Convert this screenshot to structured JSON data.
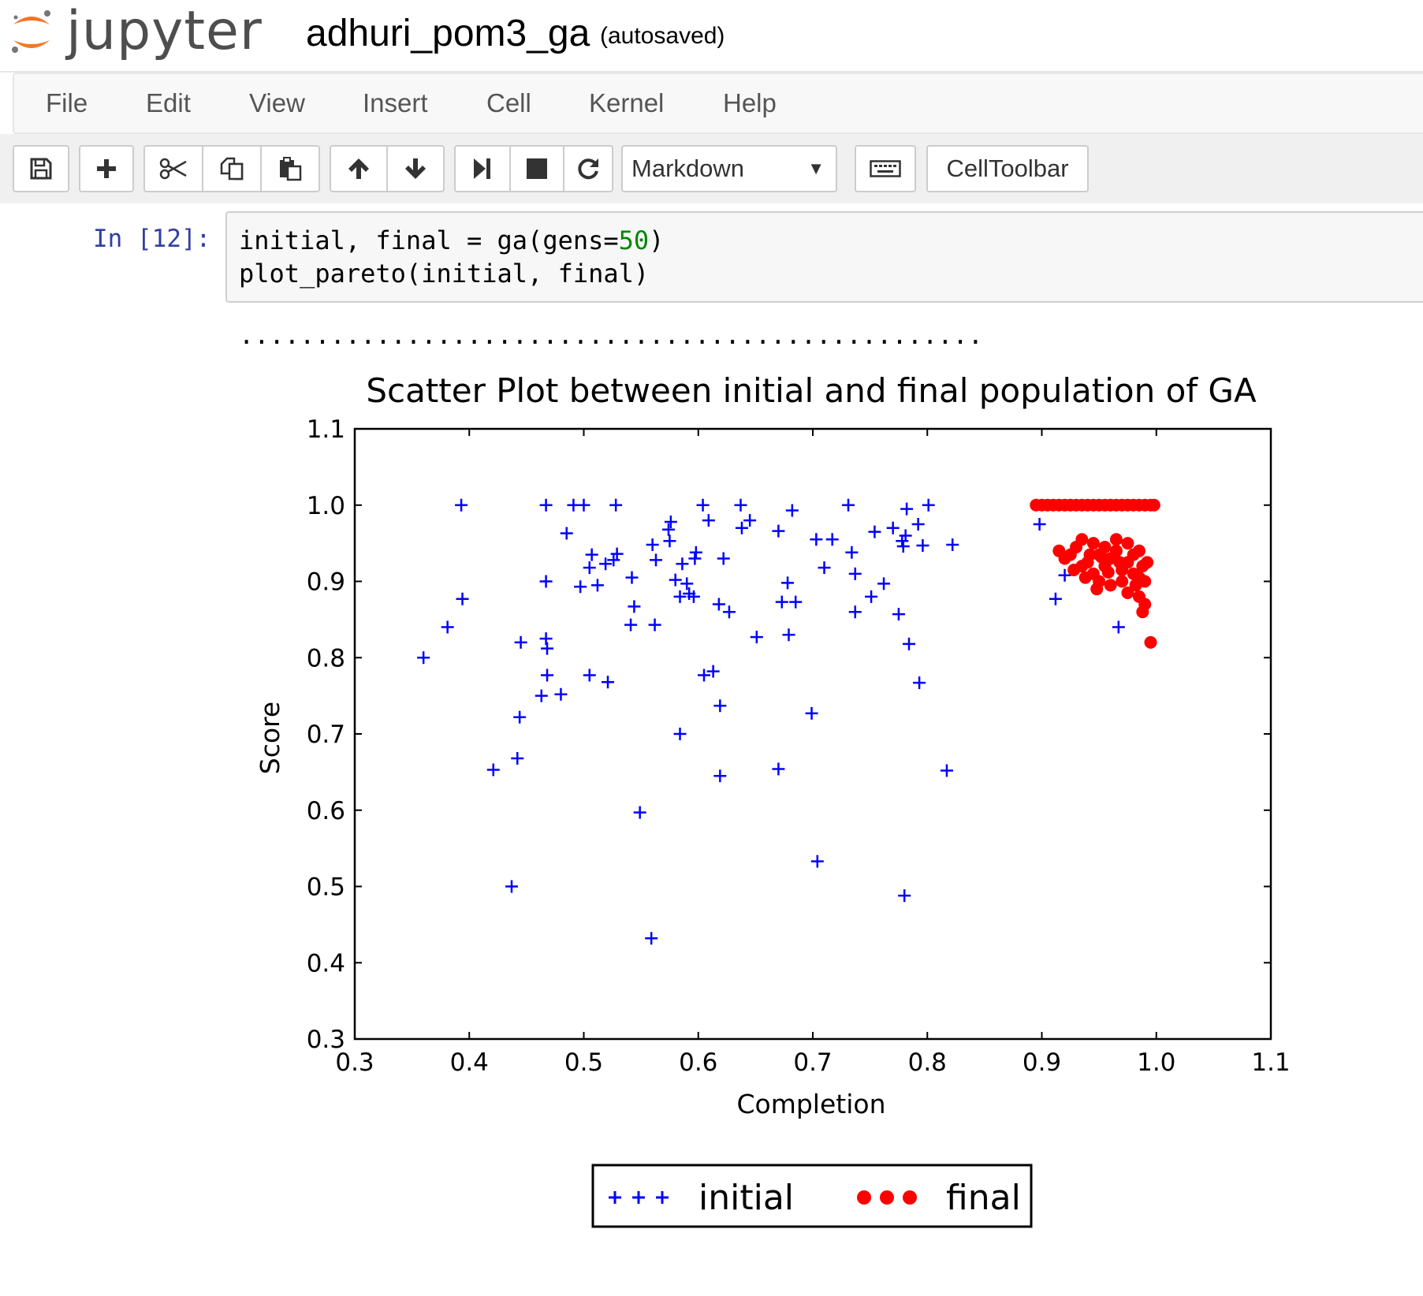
{
  "header": {
    "logo_text": "jupyter",
    "notebook_name": "adhuri_pom3_ga",
    "autosave_status": "(autosaved)",
    "logo_colors": {
      "ring": "#f37726",
      "wordmark": "#4e4e4e",
      "dots": "#767677"
    }
  },
  "menu": {
    "items": [
      "File",
      "Edit",
      "View",
      "Insert",
      "Cell",
      "Kernel",
      "Help"
    ]
  },
  "toolbar": {
    "buttons": [
      {
        "name": "save-button",
        "icon": "floppy-disk-icon"
      },
      {
        "name": "insert-cell-button",
        "icon": "plus-icon"
      },
      {
        "name": "cut-button",
        "icon": "scissors-icon"
      },
      {
        "name": "copy-button",
        "icon": "copy-icon"
      },
      {
        "name": "paste-button",
        "icon": "paste-icon"
      },
      {
        "name": "move-up-button",
        "icon": "arrow-up-icon"
      },
      {
        "name": "move-down-button",
        "icon": "arrow-down-icon"
      },
      {
        "name": "run-button",
        "icon": "step-forward-icon"
      },
      {
        "name": "interrupt-button",
        "icon": "stop-icon"
      },
      {
        "name": "restart-button",
        "icon": "refresh-icon"
      },
      {
        "name": "command-palette-button",
        "icon": "keyboard-icon"
      }
    ],
    "cell_type": "Markdown",
    "cell_toolbar_label": "CellToolbar"
  },
  "cell": {
    "prompt": "In [12]:",
    "code_line1_prefix": "initial, final = ga(gens=",
    "code_line1_number": "50",
    "code_line1_suffix": ")",
    "code_line2": "plot_pareto(initial, final)",
    "stream_output": "................................................."
  },
  "chart_data": {
    "type": "scatter",
    "title": "Scatter Plot between initial and final population of GA",
    "xlabel": "Completion",
    "ylabel": "Score",
    "xlim": [
      0.3,
      1.1
    ],
    "ylim": [
      0.3,
      1.1
    ],
    "xticks": [
      "0.3",
      "0.4",
      "0.5",
      "0.6",
      "0.7",
      "0.8",
      "0.9",
      "1.0",
      "1.1"
    ],
    "yticks": [
      "0.3",
      "0.4",
      "0.5",
      "0.6",
      "0.7",
      "0.8",
      "0.9",
      "1.0",
      "1.1"
    ],
    "grid": false,
    "legend_position": "below",
    "series": [
      {
        "name": "initial",
        "marker": "plus",
        "color": "#0000ff",
        "points": [
          [
            0.393,
            1.0
          ],
          [
            0.467,
            1.0
          ],
          [
            0.491,
            1.0
          ],
          [
            0.5,
            1.0
          ],
          [
            0.528,
            1.0
          ],
          [
            0.604,
            1.0
          ],
          [
            0.637,
            1.0
          ],
          [
            0.731,
            1.0
          ],
          [
            0.801,
            1.0
          ],
          [
            0.36,
            0.8
          ],
          [
            0.381,
            0.84
          ],
          [
            0.394,
            0.877
          ],
          [
            0.467,
            0.9
          ],
          [
            0.485,
            0.963
          ],
          [
            0.497,
            0.893
          ],
          [
            0.505,
            0.918
          ],
          [
            0.507,
            0.935
          ],
          [
            0.512,
            0.895
          ],
          [
            0.519,
            0.923
          ],
          [
            0.526,
            0.928
          ],
          [
            0.529,
            0.936
          ],
          [
            0.542,
            0.905
          ],
          [
            0.544,
            0.867
          ],
          [
            0.541,
            0.843
          ],
          [
            0.56,
            0.948
          ],
          [
            0.563,
            0.928
          ],
          [
            0.574,
            0.968
          ],
          [
            0.576,
            0.978
          ],
          [
            0.575,
            0.953
          ],
          [
            0.58,
            0.902
          ],
          [
            0.584,
            0.88
          ],
          [
            0.586,
            0.923
          ],
          [
            0.59,
            0.897
          ],
          [
            0.592,
            0.884
          ],
          [
            0.596,
            0.88
          ],
          [
            0.597,
            0.93
          ],
          [
            0.598,
            0.938
          ],
          [
            0.609,
            0.98
          ],
          [
            0.618,
            0.87
          ],
          [
            0.622,
            0.93
          ],
          [
            0.627,
            0.86
          ],
          [
            0.638,
            0.97
          ],
          [
            0.645,
            0.98
          ],
          [
            0.651,
            0.827
          ],
          [
            0.67,
            0.966
          ],
          [
            0.678,
            0.898
          ],
          [
            0.679,
            0.83
          ],
          [
            0.682,
            0.993
          ],
          [
            0.685,
            0.873
          ],
          [
            0.673,
            0.873
          ],
          [
            0.703,
            0.955
          ],
          [
            0.71,
            0.918
          ],
          [
            0.717,
            0.955
          ],
          [
            0.734,
            0.938
          ],
          [
            0.737,
            0.91
          ],
          [
            0.737,
            0.86
          ],
          [
            0.751,
            0.88
          ],
          [
            0.754,
            0.965
          ],
          [
            0.762,
            0.897
          ],
          [
            0.77,
            0.97
          ],
          [
            0.775,
            0.857
          ],
          [
            0.778,
            0.953
          ],
          [
            0.779,
            0.946
          ],
          [
            0.781,
            0.96
          ],
          [
            0.782,
            0.995
          ],
          [
            0.784,
            0.818
          ],
          [
            0.792,
            0.975
          ],
          [
            0.793,
            0.767
          ],
          [
            0.796,
            0.947
          ],
          [
            0.822,
            0.948
          ],
          [
            0.817,
            0.652
          ],
          [
            0.898,
            0.975
          ],
          [
            0.912,
            0.877
          ],
          [
            0.92,
            0.908
          ],
          [
            0.967,
            0.84
          ],
          [
            0.445,
            0.82
          ],
          [
            0.467,
            0.825
          ],
          [
            0.468,
            0.812
          ],
          [
            0.468,
            0.777
          ],
          [
            0.463,
            0.75
          ],
          [
            0.48,
            0.752
          ],
          [
            0.505,
            0.777
          ],
          [
            0.521,
            0.768
          ],
          [
            0.444,
            0.722
          ],
          [
            0.442,
            0.668
          ],
          [
            0.421,
            0.653
          ],
          [
            0.437,
            0.5
          ],
          [
            0.549,
            0.597
          ],
          [
            0.559,
            0.432
          ],
          [
            0.584,
            0.7
          ],
          [
            0.605,
            0.777
          ],
          [
            0.613,
            0.782
          ],
          [
            0.619,
            0.737
          ],
          [
            0.619,
            0.645
          ],
          [
            0.67,
            0.654
          ],
          [
            0.699,
            0.727
          ],
          [
            0.704,
            0.533
          ],
          [
            0.78,
            0.488
          ],
          [
            0.562,
            0.843
          ]
        ]
      },
      {
        "name": "final",
        "marker": "circle",
        "color": "#ff0000",
        "points": [
          [
            0.895,
            1.0
          ],
          [
            0.905,
            1.0
          ],
          [
            0.915,
            1.0
          ],
          [
            0.925,
            1.0
          ],
          [
            0.935,
            1.0
          ],
          [
            0.945,
            1.0
          ],
          [
            0.955,
            1.0
          ],
          [
            0.965,
            1.0
          ],
          [
            0.975,
            1.0
          ],
          [
            0.985,
            1.0
          ],
          [
            0.995,
            1.0
          ],
          [
            0.9,
            1.0
          ],
          [
            0.91,
            1.0
          ],
          [
            0.92,
            1.0
          ],
          [
            0.93,
            1.0
          ],
          [
            0.94,
            1.0
          ],
          [
            0.95,
            1.0
          ],
          [
            0.96,
            1.0
          ],
          [
            0.97,
            1.0
          ],
          [
            0.98,
            1.0
          ],
          [
            0.99,
            1.0
          ],
          [
            0.998,
            1.0
          ],
          [
            0.915,
            0.94
          ],
          [
            0.92,
            0.93
          ],
          [
            0.925,
            0.935
          ],
          [
            0.93,
            0.945
          ],
          [
            0.935,
            0.92
          ],
          [
            0.94,
            0.925
          ],
          [
            0.945,
            0.91
          ],
          [
            0.95,
            0.9
          ],
          [
            0.955,
            0.92
          ],
          [
            0.96,
            0.93
          ],
          [
            0.965,
            0.94
          ],
          [
            0.97,
            0.915
          ],
          [
            0.975,
            0.925
          ],
          [
            0.98,
            0.91
          ],
          [
            0.985,
            0.905
          ],
          [
            0.99,
            0.9
          ],
          [
            0.985,
            0.88
          ],
          [
            0.99,
            0.87
          ],
          [
            0.988,
            0.86
          ],
          [
            0.995,
            0.82
          ],
          [
            0.945,
            0.95
          ],
          [
            0.955,
            0.945
          ],
          [
            0.965,
            0.955
          ],
          [
            0.975,
            0.95
          ],
          [
            0.98,
            0.935
          ],
          [
            0.988,
            0.92
          ],
          [
            0.97,
            0.9
          ],
          [
            0.96,
            0.895
          ],
          [
            0.948,
            0.89
          ],
          [
            0.938,
            0.905
          ],
          [
            0.928,
            0.915
          ],
          [
            0.975,
            0.885
          ],
          [
            0.982,
            0.895
          ],
          [
            0.958,
            0.912
          ],
          [
            0.942,
            0.935
          ],
          [
            0.985,
            0.94
          ],
          [
            0.992,
            0.925
          ],
          [
            0.968,
            0.925
          ],
          [
            0.952,
            0.932
          ],
          [
            0.935,
            0.955
          ],
          [
            0.95,
            0.935
          ]
        ]
      }
    ]
  }
}
